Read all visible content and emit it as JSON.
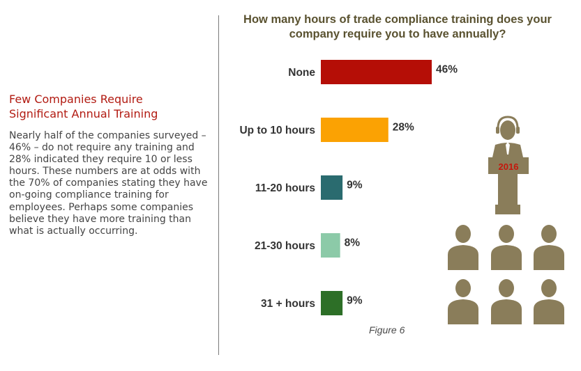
{
  "sidebar": {
    "heading": "Few Companies Require Significant Annual Training",
    "body": "Nearly half of the companies surveyed – 46% – do not require any training and 28% indicated they require 10 or less hours. These numbers are at odds with the 70% of companies stating they have on-going compliance training for employees. Perhaps some companies believe they have more training than what is actually occurring."
  },
  "chart_data": {
    "type": "bar",
    "orientation": "horizontal",
    "title": "How many hours of trade compliance training does your company require you to have annually?",
    "categories": [
      "None",
      "Up to 10 hours",
      "11-20 hours",
      "21-30 hours",
      "31 + hours"
    ],
    "values": [
      46,
      28,
      9,
      8,
      9
    ],
    "value_labels": [
      "46%",
      "28%",
      "9%",
      "8%",
      "9%"
    ],
    "bar_colors": [
      "#b50e06",
      "#fba203",
      "#2a6b6f",
      "#8ccaa8",
      "#2d6f27"
    ],
    "xlim": [
      0,
      46
    ],
    "grid": false,
    "legend": "none"
  },
  "caption": "Figure 6",
  "illustration": {
    "icon": "presenter-audience-icon",
    "podium_label": "2016",
    "figure_color": "#8a7d5a",
    "podium_label_color": "#c4170c"
  }
}
